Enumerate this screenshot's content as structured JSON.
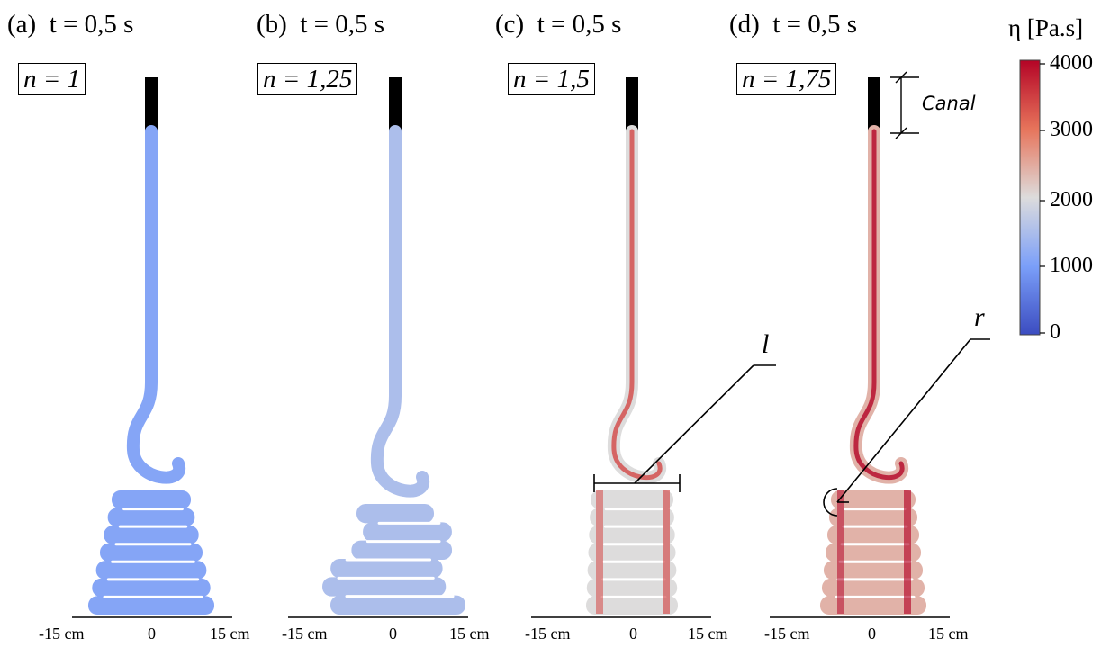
{
  "panels": [
    {
      "tag": "(a)",
      "time": "t = 0,5 s",
      "n_label": "n = 1",
      "n": 1,
      "viscosity_mean": 1100,
      "ticks": [
        "-15 cm",
        "0",
        "15 cm"
      ]
    },
    {
      "tag": "(b)",
      "time": "t = 0,5 s",
      "n_label": "n = 1,25",
      "n": 1.25,
      "viscosity_mean": 1500,
      "ticks": [
        "-15 cm",
        "0",
        "15 cm"
      ]
    },
    {
      "tag": "(c)",
      "time": "t = 0,5 s",
      "n_label": "n = 1,5",
      "n": 1.5,
      "viscosity_mean": 2000,
      "ticks": [
        "-15 cm",
        "0",
        "15 cm"
      ]
    },
    {
      "tag": "(d)",
      "time": "t = 0,5 s",
      "n_label": "n = 1,75",
      "n": 1.75,
      "viscosity_mean": 2400,
      "ticks": [
        "-15 cm",
        "0",
        "15 cm"
      ]
    }
  ],
  "colorbar": {
    "title": "η [Pa.s]",
    "ticks": [
      "4000",
      "3000",
      "2000",
      "1000",
      "0"
    ],
    "range": [
      0,
      4000
    ],
    "colors": [
      "#b40426",
      "#e7745b",
      "#dddcdc",
      "#7b9ff9",
      "#3b4cc0"
    ]
  },
  "annotations": {
    "length": "l",
    "radius": "r",
    "channel": "Canal"
  }
}
